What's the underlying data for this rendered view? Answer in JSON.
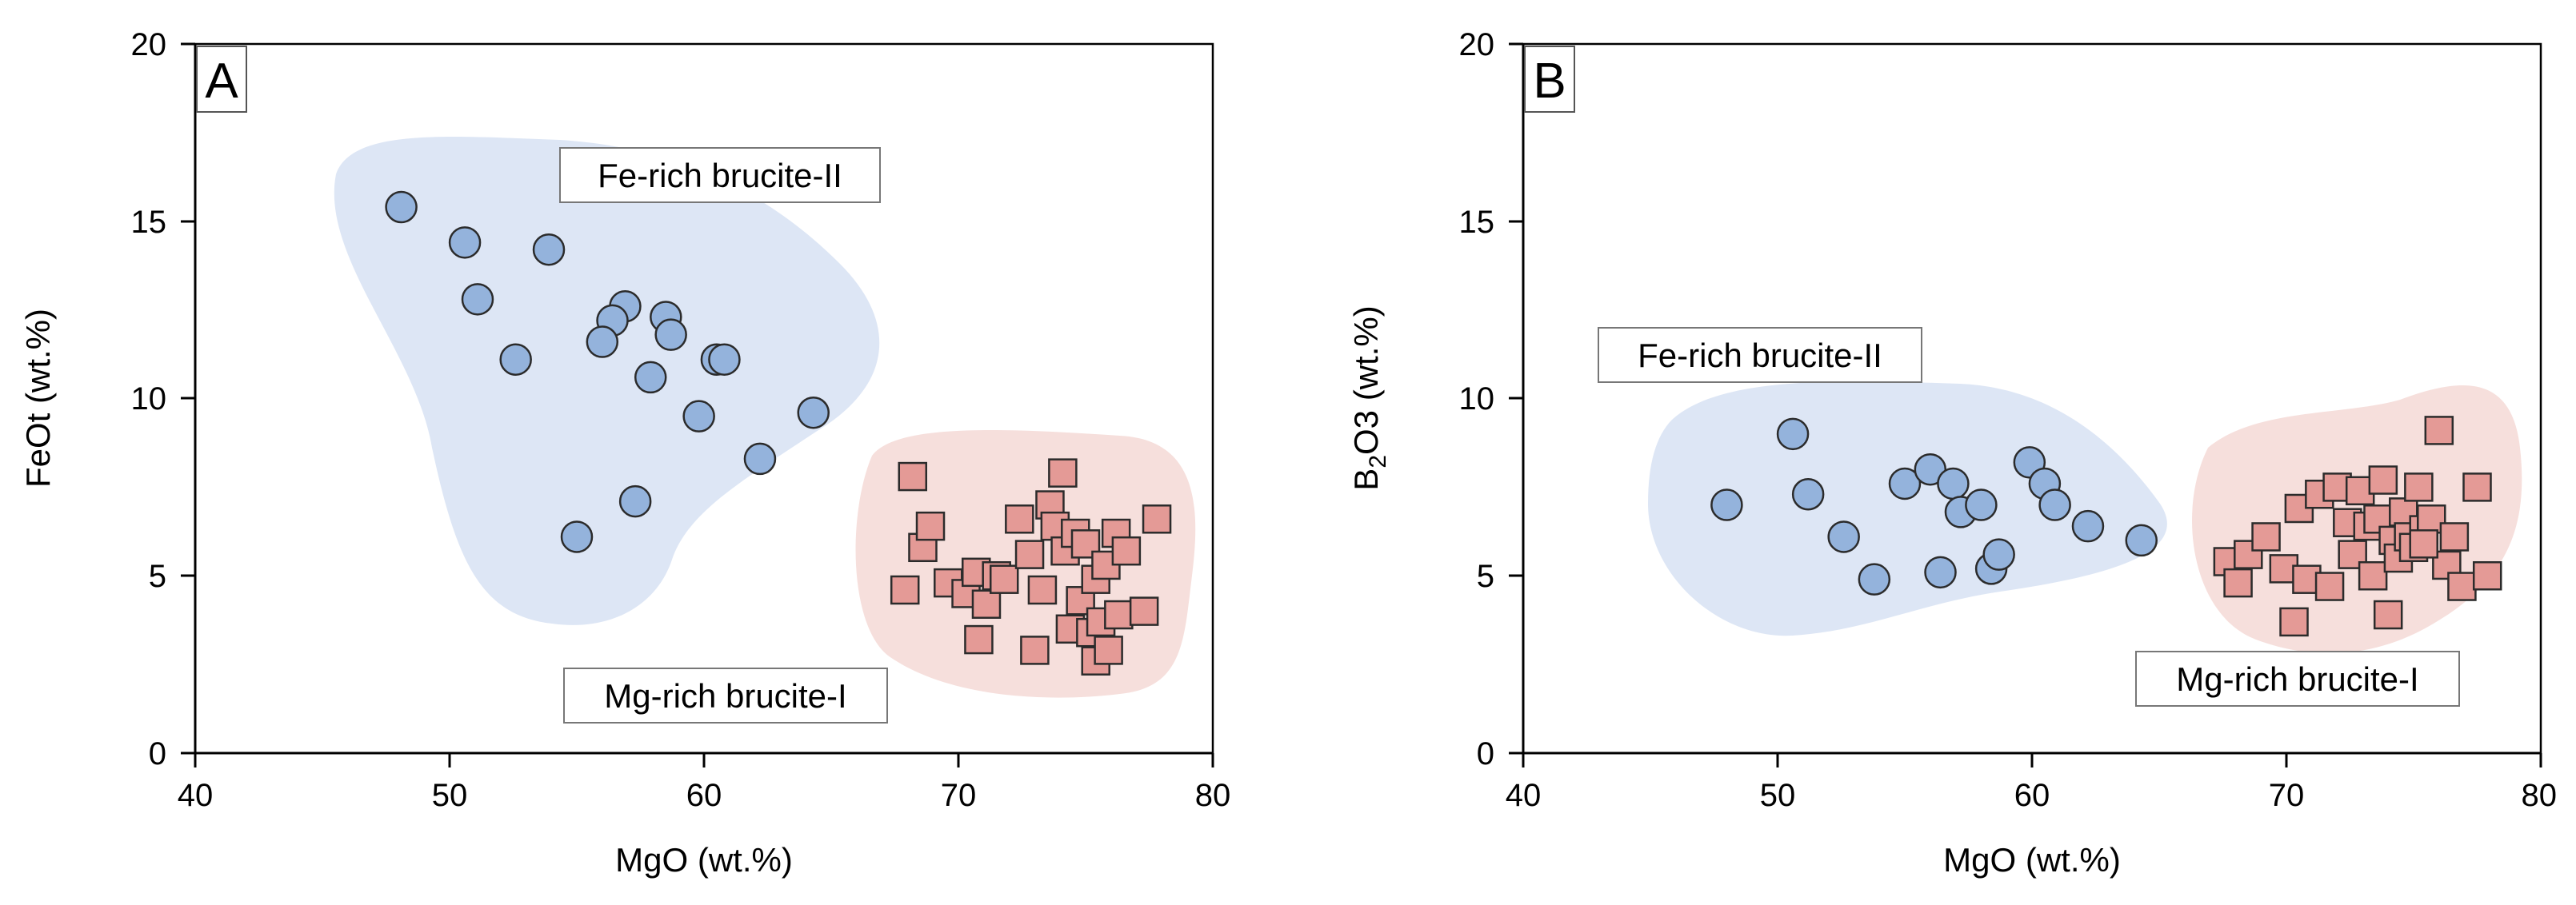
{
  "chart_data": [
    {
      "type": "scatter",
      "panel_label": "A",
      "xlabel": "MgO (wt.%)",
      "ylabel": "FeOt (wt.%)",
      "ylabel_main": "FeOt (wt.%)",
      "ylabel_sub": "",
      "ylabel_tail": "",
      "xlim": [
        40,
        80
      ],
      "ylim": [
        0,
        20
      ],
      "xticks": [
        "40",
        "50",
        "60",
        "70",
        "80"
      ],
      "yticks": [
        "0",
        "5",
        "10",
        "15",
        "20"
      ],
      "fields": [
        {
          "name": "Fe-rich brucite-II",
          "color": "#dde6f5"
        },
        {
          "name": "Mg-rich brucite-I",
          "color": "#f6dfdc"
        }
      ],
      "series": [
        {
          "name": "Fe-rich brucite-II",
          "marker": "circle",
          "color": "#94b3dc",
          "points": [
            [
              48.1,
              15.4
            ],
            [
              50.6,
              14.4
            ],
            [
              51.1,
              12.8
            ],
            [
              53.9,
              14.2
            ],
            [
              52.6,
              11.1
            ],
            [
              56.9,
              12.6
            ],
            [
              56.4,
              12.2
            ],
            [
              56.0,
              11.6
            ],
            [
              58.5,
              12.3
            ],
            [
              58.7,
              11.8
            ],
            [
              60.5,
              11.1
            ],
            [
              60.8,
              11.1
            ],
            [
              57.9,
              10.6
            ],
            [
              59.8,
              9.5
            ],
            [
              64.3,
              9.6
            ],
            [
              62.2,
              8.3
            ],
            [
              57.3,
              7.1
            ],
            [
              55.0,
              6.1
            ]
          ]
        },
        {
          "name": "Mg-rich brucite-I",
          "marker": "square",
          "color": "#e49a96",
          "points": [
            [
              67.9,
              4.6
            ],
            [
              68.2,
              7.8
            ],
            [
              68.6,
              5.8
            ],
            [
              68.9,
              6.4
            ],
            [
              69.6,
              4.8
            ],
            [
              70.3,
              4.5
            ],
            [
              70.7,
              5.1
            ],
            [
              70.8,
              3.2
            ],
            [
              71.1,
              4.2
            ],
            [
              71.5,
              5.0
            ],
            [
              71.8,
              4.9
            ],
            [
              72.4,
              6.6
            ],
            [
              72.8,
              5.6
            ],
            [
              73.0,
              2.9
            ],
            [
              73.3,
              4.6
            ],
            [
              73.6,
              7.0
            ],
            [
              73.8,
              6.4
            ],
            [
              74.1,
              7.9
            ],
            [
              74.2,
              5.7
            ],
            [
              74.4,
              3.5
            ],
            [
              74.6,
              6.2
            ],
            [
              74.8,
              4.3
            ],
            [
              75.0,
              5.9
            ],
            [
              75.2,
              3.4
            ],
            [
              75.4,
              2.6
            ],
            [
              75.4,
              4.9
            ],
            [
              75.6,
              3.7
            ],
            [
              75.8,
              5.3
            ],
            [
              75.9,
              2.9
            ],
            [
              76.2,
              6.2
            ],
            [
              76.3,
              3.9
            ],
            [
              76.6,
              5.7
            ],
            [
              77.3,
              4.0
            ],
            [
              77.8,
              6.6
            ]
          ]
        }
      ]
    },
    {
      "type": "scatter",
      "panel_label": "B",
      "xlabel": "MgO (wt.%)",
      "ylabel": "B2O3 (wt.%)",
      "ylabel_main": "B",
      "ylabel_sub": "2",
      "ylabel_tail": "O3 (wt.%)",
      "xlim": [
        40,
        80
      ],
      "ylim": [
        0,
        20
      ],
      "xticks": [
        "40",
        "50",
        "60",
        "70",
        "80"
      ],
      "yticks": [
        "0",
        "5",
        "10",
        "15",
        "20"
      ],
      "fields": [
        {
          "name": "Fe-rich brucite-II",
          "color": "#dde6f5"
        },
        {
          "name": "Mg-rich brucite-I",
          "color": "#f6dfdc"
        }
      ],
      "series": [
        {
          "name": "Fe-rich brucite-II",
          "marker": "circle",
          "color": "#94b3dc",
          "points": [
            [
              48.0,
              7.0
            ],
            [
              50.6,
              9.0
            ],
            [
              51.2,
              7.3
            ],
            [
              52.6,
              6.1
            ],
            [
              53.8,
              4.9
            ],
            [
              55.0,
              7.6
            ],
            [
              56.0,
              8.0
            ],
            [
              56.9,
              7.6
            ],
            [
              57.2,
              6.8
            ],
            [
              58.0,
              7.0
            ],
            [
              56.4,
              5.1
            ],
            [
              58.4,
              5.2
            ],
            [
              58.7,
              5.6
            ],
            [
              59.9,
              8.2
            ],
            [
              60.5,
              7.6
            ],
            [
              60.9,
              7.0
            ],
            [
              62.2,
              6.4
            ],
            [
              64.3,
              6.0
            ]
          ]
        },
        {
          "name": "Mg-rich brucite-I",
          "marker": "square",
          "color": "#e49a96",
          "points": [
            [
              67.7,
              5.4
            ],
            [
              68.1,
              4.8
            ],
            [
              68.5,
              5.6
            ],
            [
              69.2,
              6.1
            ],
            [
              69.9,
              5.2
            ],
            [
              70.3,
              3.7
            ],
            [
              70.5,
              6.9
            ],
            [
              70.8,
              4.9
            ],
            [
              71.3,
              7.3
            ],
            [
              71.7,
              4.7
            ],
            [
              72.0,
              7.5
            ],
            [
              72.4,
              6.5
            ],
            [
              72.6,
              5.6
            ],
            [
              72.9,
              7.4
            ],
            [
              73.2,
              6.4
            ],
            [
              73.4,
              5.0
            ],
            [
              73.6,
              6.6
            ],
            [
              73.8,
              7.7
            ],
            [
              74.0,
              3.9
            ],
            [
              74.2,
              6.0
            ],
            [
              74.4,
              5.5
            ],
            [
              74.6,
              6.8
            ],
            [
              74.8,
              6.1
            ],
            [
              75.0,
              5.8
            ],
            [
              75.2,
              7.5
            ],
            [
              75.4,
              6.3
            ],
            [
              75.7,
              6.6
            ],
            [
              76.0,
              9.1
            ],
            [
              76.3,
              5.3
            ],
            [
              76.6,
              6.1
            ],
            [
              76.9,
              4.7
            ],
            [
              77.5,
              7.5
            ],
            [
              77.9,
              5.0
            ],
            [
              75.4,
              5.9
            ]
          ]
        }
      ]
    }
  ]
}
